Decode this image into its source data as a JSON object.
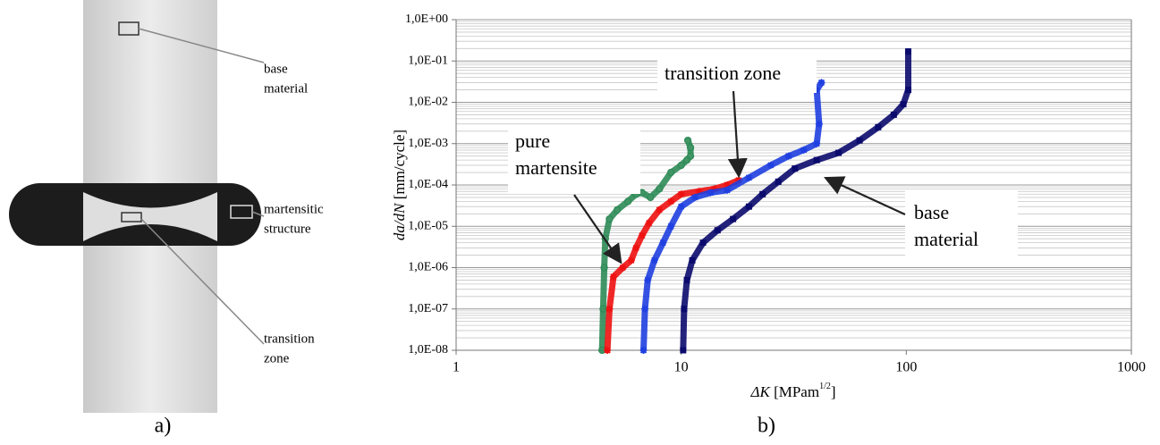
{
  "photo": {
    "labels": [
      {
        "lines": [
          "base",
          "material"
        ]
      },
      {
        "lines": [
          "martensitic",
          "structure"
        ]
      },
      {
        "lines": [
          "transition",
          " zone"
        ]
      }
    ],
    "caption": "a)"
  },
  "chart_data": {
    "type": "scatter",
    "caption": "b)",
    "x_label": {
      "symbol": "ΔK",
      "text": " [MPam",
      "sup": "1/2",
      "end": "]"
    },
    "y_label": {
      "italic": "da/dN",
      "text": " [mm/cycle]"
    },
    "log_x": true,
    "log_y": true,
    "grid": true,
    "minor_grid": true,
    "xlim": [
      1,
      1000
    ],
    "ylim": [
      1e-08,
      1
    ],
    "xticks": [
      1,
      10,
      100,
      1000
    ],
    "yticks": [
      {
        "value": 1e-08,
        "label": "1,0E-08"
      },
      {
        "value": 1e-07,
        "label": "1,0E-07"
      },
      {
        "value": 1e-06,
        "label": "1,0E-06"
      },
      {
        "value": 1e-05,
        "label": "1,0E-05"
      },
      {
        "value": 0.0001,
        "label": "1,0E-04"
      },
      {
        "value": 0.001,
        "label": "1,0E-03"
      },
      {
        "value": 0.01,
        "label": "1,0E-02"
      },
      {
        "value": 0.1,
        "label": "1,0E-01"
      },
      {
        "value": 1,
        "label": "1,0E+00"
      }
    ],
    "series": [
      {
        "color": "#2e8b57",
        "marker": "circle",
        "x": [
          4.45,
          4.5,
          4.55,
          4.6,
          4.8,
          5.2,
          5.8,
          6.3,
          6.7,
          7.3,
          8,
          9,
          10,
          10.6,
          11,
          11,
          10.7
        ],
        "values": [
          1e-08,
          1e-07,
          1e-06,
          5e-06,
          1.5e-05,
          2.5e-05,
          4e-05,
          6e-05,
          6.5e-05,
          5e-05,
          8e-05,
          0.0002,
          0.0003,
          0.0004,
          0.0005,
          0.0008,
          0.0012
        ]
      },
      {
        "color": "#ee1111",
        "marker": "star",
        "x": [
          4.7,
          4.8,
          5,
          5.5,
          6,
          6.3,
          6.7,
          7.2,
          8,
          9,
          10,
          12,
          14,
          16,
          18
        ],
        "values": [
          1e-08,
          1e-07,
          6e-07,
          1e-06,
          1.5e-06,
          3e-06,
          6e-06,
          1.2e-05,
          2.5e-05,
          4e-05,
          6e-05,
          7e-05,
          8e-05,
          0.0001,
          0.00013
        ]
      },
      {
        "color": "#1f3fe0",
        "marker": "star",
        "x": [
          6.8,
          6.9,
          7.1,
          7.6,
          8.3,
          9,
          10,
          11.5,
          13.5,
          16,
          20,
          25,
          30,
          35,
          40,
          41,
          40,
          42
        ],
        "values": [
          1e-08,
          1e-07,
          5e-07,
          1.5e-06,
          4e-06,
          1e-05,
          3e-05,
          5e-05,
          6.5e-05,
          7.5e-05,
          0.00015,
          0.0003,
          0.0005,
          0.0007,
          0.001,
          0.003,
          0.02,
          0.03
        ]
      },
      {
        "color": "#0b0b6e",
        "marker": "square",
        "x": [
          10.2,
          10.3,
          10.6,
          11.2,
          12.5,
          14.5,
          17,
          20,
          23,
          27,
          32,
          40,
          50,
          62,
          75,
          88,
          97,
          102,
          102
        ],
        "values": [
          1e-08,
          1e-07,
          5e-07,
          1.5e-06,
          4e-06,
          8e-06,
          1.5e-05,
          3e-05,
          6e-05,
          0.00012,
          0.00025,
          0.0004,
          0.0006,
          0.0012,
          0.0025,
          0.005,
          0.009,
          0.02,
          0.17
        ]
      }
    ],
    "annotations": [
      {
        "lines": [
          "pure",
          "martensite"
        ]
      },
      {
        "lines": [
          "transition zone"
        ]
      },
      {
        "lines": [
          "base",
          "material"
        ]
      }
    ]
  }
}
